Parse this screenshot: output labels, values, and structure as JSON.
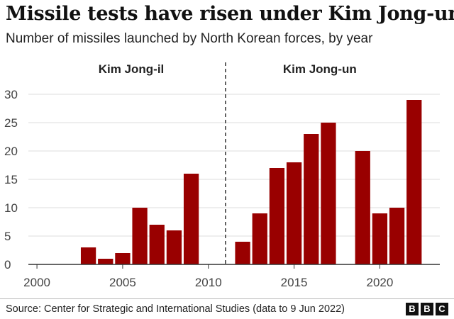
{
  "header": {
    "title": "Missile tests have risen under Kim Jong-un",
    "subtitle": "Number of missiles launched by North Korean forces, by year"
  },
  "footer": {
    "source": "Source: Center for Strategic and International Studies (data to 9 Jun 2022)",
    "logo_letters": [
      "B",
      "B",
      "C"
    ]
  },
  "chart_data": {
    "type": "bar",
    "title": "Missile tests have risen under Kim Jong-un",
    "subtitle": "Number of missiles launched by North Korean forces, by year",
    "x": [
      2003,
      2004,
      2005,
      2006,
      2007,
      2008,
      2009,
      2012,
      2013,
      2014,
      2015,
      2016,
      2017,
      2019,
      2020,
      2021,
      2022
    ],
    "values": [
      3,
      1,
      2,
      10,
      7,
      6,
      16,
      4,
      9,
      17,
      18,
      23,
      25,
      20,
      9,
      10,
      29
    ],
    "xlim": [
      1999.5,
      2023.5
    ],
    "ylim": [
      0,
      30
    ],
    "x_ticks": [
      2000,
      2005,
      2010,
      2015,
      2020
    ],
    "y_ticks": [
      0,
      5,
      10,
      15,
      20,
      25,
      30
    ],
    "bar_color": "#990000",
    "grid": true,
    "divider_x": 2011,
    "annotations": [
      {
        "text": "Kim Jong-il",
        "x": 2005.5
      },
      {
        "text": "Kim Jong-un",
        "x": 2016.5
      }
    ]
  }
}
